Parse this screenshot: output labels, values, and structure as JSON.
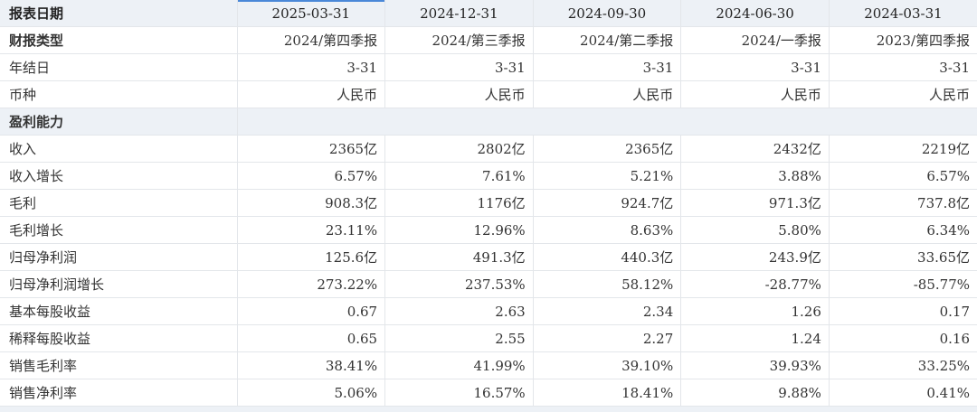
{
  "header": {
    "first": "报表日期",
    "dates": [
      "2025-03-31",
      "2024-12-31",
      "2024-09-30",
      "2024-06-30",
      "2024-03-31"
    ]
  },
  "meta_rows": [
    {
      "label": "财报类型",
      "values": [
        "2024/第四季报",
        "2024/第三季报",
        "2024/第二季报",
        "2024/一季报",
        "2023/第四季报"
      ]
    },
    {
      "label": "年结日",
      "values": [
        "3-31",
        "3-31",
        "3-31",
        "3-31",
        "3-31"
      ]
    },
    {
      "label": "币种",
      "values": [
        "人民币",
        "人民币",
        "人民币",
        "人民币",
        "人民币"
      ]
    }
  ],
  "section": {
    "title": "盈利能力"
  },
  "rows": [
    {
      "label": "收入",
      "values": [
        "2365亿",
        "2802亿",
        "2365亿",
        "2432亿",
        "2219亿"
      ]
    },
    {
      "label": "收入增长",
      "values": [
        "6.57%",
        "7.61%",
        "5.21%",
        "3.88%",
        "6.57%"
      ]
    },
    {
      "label": "毛利",
      "values": [
        "908.3亿",
        "1176亿",
        "924.7亿",
        "971.3亿",
        "737.8亿"
      ]
    },
    {
      "label": "毛利增长",
      "values": [
        "23.11%",
        "12.96%",
        "8.63%",
        "5.80%",
        "6.34%"
      ]
    },
    {
      "label": "归母净利润",
      "values": [
        "125.6亿",
        "491.3亿",
        "440.3亿",
        "243.9亿",
        "33.65亿"
      ]
    },
    {
      "label": "归母净利润增长",
      "values": [
        "273.22%",
        "237.53%",
        "58.12%",
        "-28.77%",
        "-85.77%"
      ]
    },
    {
      "label": "基本每股收益",
      "values": [
        "0.67",
        "2.63",
        "2.34",
        "1.26",
        "0.17"
      ]
    },
    {
      "label": "稀释每股收益",
      "values": [
        "0.65",
        "2.55",
        "2.27",
        "1.24",
        "0.16"
      ]
    },
    {
      "label": "销售毛利率",
      "values": [
        "38.41%",
        "41.99%",
        "39.10%",
        "39.93%",
        "33.25%"
      ]
    },
    {
      "label": "销售净利率",
      "values": [
        "5.06%",
        "16.57%",
        "18.41%",
        "9.88%",
        "0.41%"
      ]
    }
  ],
  "colors": {
    "header_bg": "#edf1f6",
    "border": "#e3e6ea",
    "active_accent": "#4a88d8"
  }
}
